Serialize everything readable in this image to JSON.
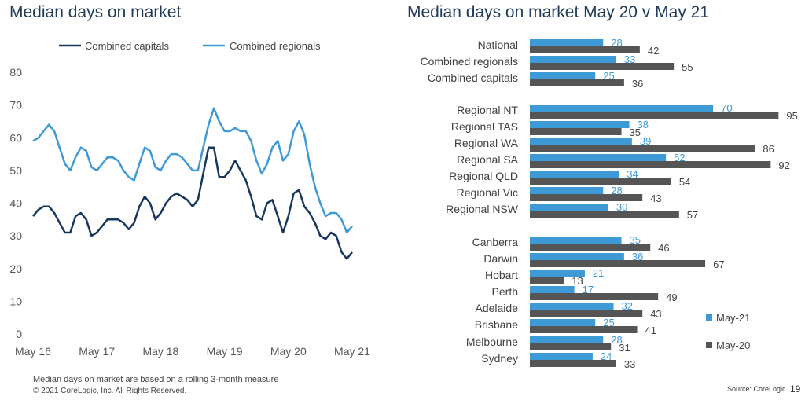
{
  "chart_data": [
    {
      "type": "line",
      "title": "Median days on market",
      "x_tick_labels": [
        "May 16",
        "May 17",
        "May 18",
        "May 19",
        "May 20",
        "May 21"
      ],
      "x_range": [
        "May 16",
        "May 21"
      ],
      "x_frequency": "monthly",
      "ylim": [
        0,
        80
      ],
      "y_ticks": [
        0,
        10,
        20,
        30,
        40,
        50,
        60,
        70,
        80
      ],
      "grid": false,
      "legend_position": "top",
      "series": [
        {
          "name": "Combined capitals",
          "color": "#17375e",
          "values": [
            36,
            38,
            39,
            39,
            37,
            34,
            31,
            31,
            36,
            37,
            35,
            30,
            31,
            33,
            35,
            35,
            35,
            34,
            32,
            34,
            39,
            42,
            40,
            35,
            37,
            40,
            42,
            43,
            42,
            41,
            39,
            41,
            49,
            57,
            57,
            48,
            48,
            50,
            53,
            50,
            47,
            42,
            36,
            35,
            40,
            41,
            36,
            31,
            36,
            43,
            44,
            39,
            37,
            34,
            30,
            29,
            31,
            30,
            25,
            23,
            25
          ]
        },
        {
          "name": "Combined regionals",
          "color": "#3d9ad6",
          "values": [
            59,
            60,
            62,
            64,
            62,
            57,
            52,
            50,
            54,
            57,
            56,
            51,
            50,
            52,
            54,
            54,
            53,
            50,
            48,
            47,
            52,
            57,
            56,
            51,
            50,
            53,
            55,
            55,
            54,
            52,
            50,
            50,
            57,
            64,
            69,
            65,
            62,
            62,
            63,
            62,
            62,
            59,
            53,
            49,
            52,
            57,
            59,
            53,
            55,
            62,
            65,
            61,
            52,
            45,
            40,
            36,
            37,
            37,
            35,
            31,
            33
          ]
        }
      ],
      "note": "Median days on market are based on a rolling 3-month measure"
    },
    {
      "type": "bar",
      "orientation": "horizontal",
      "title": "Median days on market May 20 v May 21",
      "categories": [
        "National",
        "Combined regionals",
        "Combined capitals",
        "Regional NT",
        "Regional TAS",
        "Regional WA",
        "Regional SA",
        "Regional QLD",
        "Regional Vic",
        "Regional NSW",
        "Canberra",
        "Darwin",
        "Hobart",
        "Perth",
        "Adelaide",
        "Brisbane",
        "Melbourne",
        "Sydney"
      ],
      "groups": [
        3,
        7,
        8
      ],
      "legend_position": "right",
      "series": [
        {
          "name": "May-21",
          "color": "#3d9ad6",
          "values": [
            28,
            33,
            25,
            70,
            38,
            39,
            52,
            34,
            28,
            30,
            35,
            36,
            21,
            17,
            32,
            25,
            28,
            24
          ]
        },
        {
          "name": "May-20",
          "color": "#555555",
          "values": [
            42,
            55,
            36,
            95,
            35,
            86,
            92,
            54,
            43,
            57,
            46,
            67,
            13,
            49,
            43,
            41,
            31,
            33
          ]
        }
      ]
    }
  ],
  "footer": {
    "copyright": "© 2021 CoreLogic,  Inc. All Rights Reserved.",
    "source": "Source: CoreLogic",
    "page_number": "19"
  }
}
